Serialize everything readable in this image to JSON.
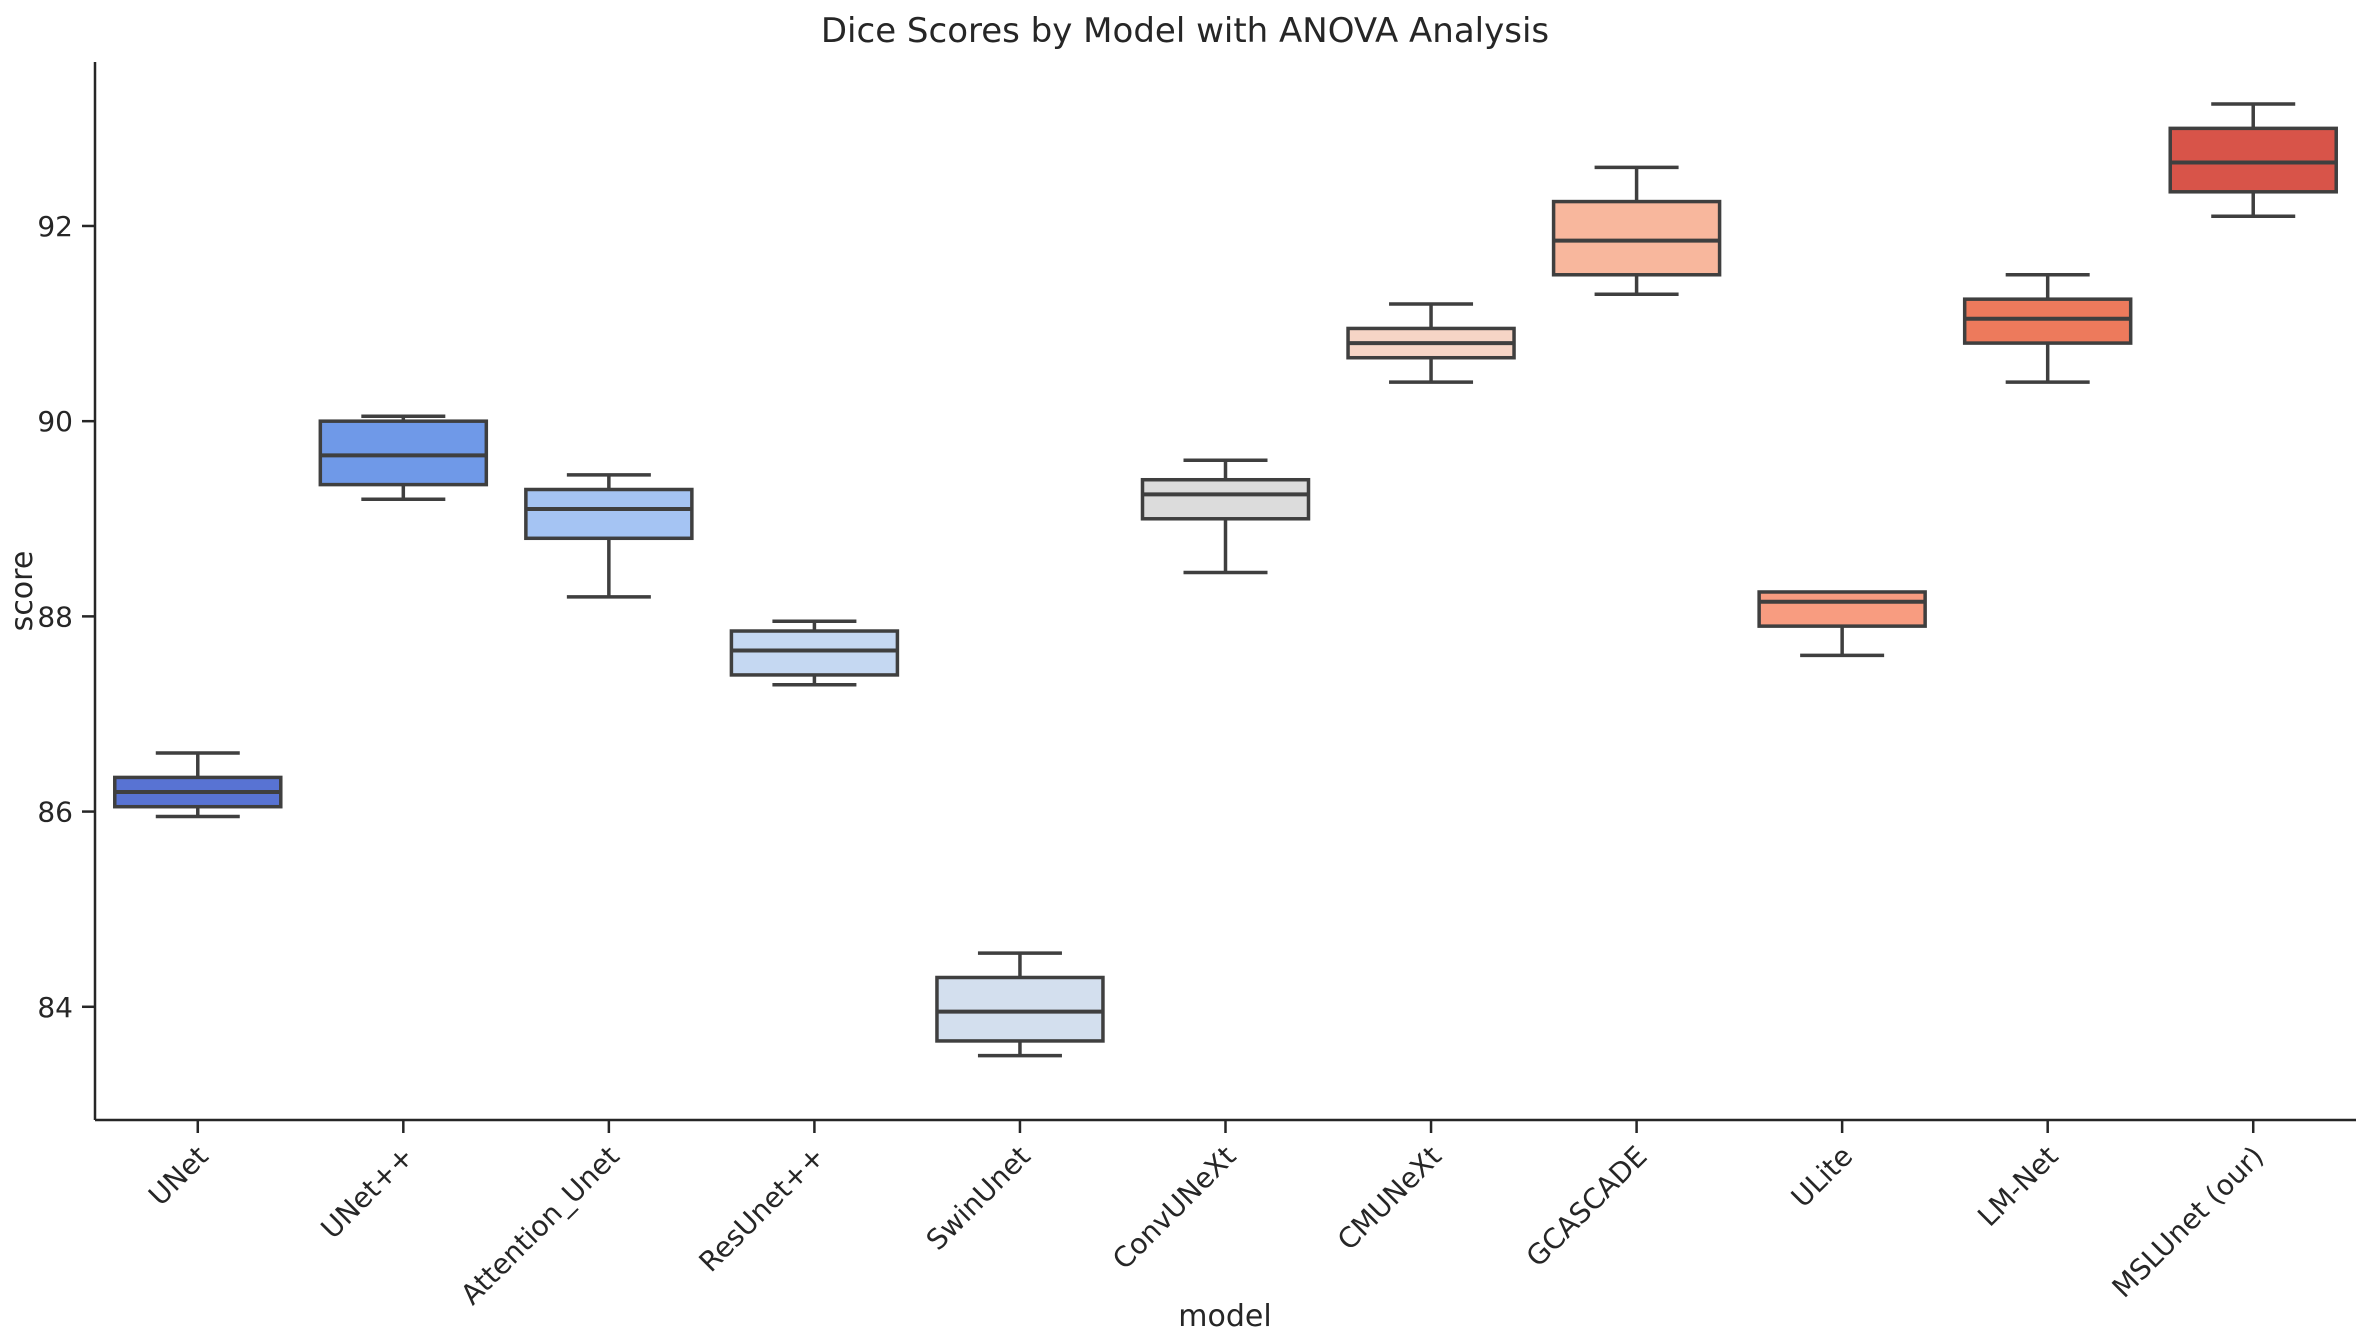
{
  "chart_data": {
    "type": "boxplot",
    "title": "Dice Scores by Model with ANOVA Analysis",
    "xlabel": "model",
    "ylabel": "score",
    "ylim": [
      82.84,
      93.68
    ],
    "yticks": [
      84,
      86,
      88,
      90,
      92
    ],
    "grid": false,
    "legend": "none",
    "orientation": "vertical",
    "categories": [
      "UNet",
      "UNet++",
      "Attention_Unet",
      "ResUnet++",
      "SwinUnet",
      "ConvUNeXt",
      "CMUNeXt",
      "GCASCADE",
      "ULite",
      "LM-Net",
      "MSLUnet (our)"
    ],
    "series": [
      {
        "model": "UNet",
        "whislo": 85.95,
        "q1": 86.05,
        "med": 86.2,
        "q3": 86.35,
        "whishi": 86.6,
        "color": "#5873d3"
      },
      {
        "model": "UNet++",
        "whislo": 89.2,
        "q1": 89.35,
        "med": 89.65,
        "q3": 90.0,
        "whishi": 90.05,
        "color": "#6f99e8"
      },
      {
        "model": "Attention_Unet",
        "whislo": 88.2,
        "q1": 88.8,
        "med": 89.1,
        "q3": 89.3,
        "whishi": 89.45,
        "color": "#a5c4f3"
      },
      {
        "model": "ResUnet++",
        "whislo": 87.3,
        "q1": 87.4,
        "med": 87.65,
        "q3": 87.85,
        "whishi": 87.95,
        "color": "#c5d8f2"
      },
      {
        "model": "SwinUnet",
        "whislo": 83.5,
        "q1": 83.65,
        "med": 83.95,
        "q3": 84.3,
        "whishi": 84.55,
        "color": "#d3dfee"
      },
      {
        "model": "ConvUNeXt",
        "whislo": 88.45,
        "q1": 89.0,
        "med": 89.25,
        "q3": 89.4,
        "whishi": 89.6,
        "color": "#dcdcdc"
      },
      {
        "model": "CMUNeXt",
        "whislo": 90.4,
        "q1": 90.65,
        "med": 90.8,
        "q3": 90.95,
        "whishi": 91.2,
        "color": "#f6d5c6"
      },
      {
        "model": "GCASCADE",
        "whislo": 91.3,
        "q1": 91.5,
        "med": 91.85,
        "q3": 92.25,
        "whishi": 92.6,
        "color": "#f8b79d"
      },
      {
        "model": "ULite",
        "whislo": 87.6,
        "q1": 87.9,
        "med": 88.15,
        "q3": 88.25,
        "whishi": 88.25,
        "color": "#f89c80"
      },
      {
        "model": "LM-Net",
        "whislo": 90.4,
        "q1": 90.8,
        "med": 91.05,
        "q3": 91.25,
        "whishi": 91.5,
        "color": "#ed7a5c"
      },
      {
        "model": "MSLUnet (our)",
        "whislo": 92.1,
        "q1": 92.35,
        "med": 92.65,
        "q3": 93.0,
        "whishi": 93.25,
        "color": "#d85449"
      }
    ],
    "edge_color": "#3f3f3f",
    "spine_color": "#262626",
    "text_color": "#262626",
    "background_color": "#ffffff"
  }
}
